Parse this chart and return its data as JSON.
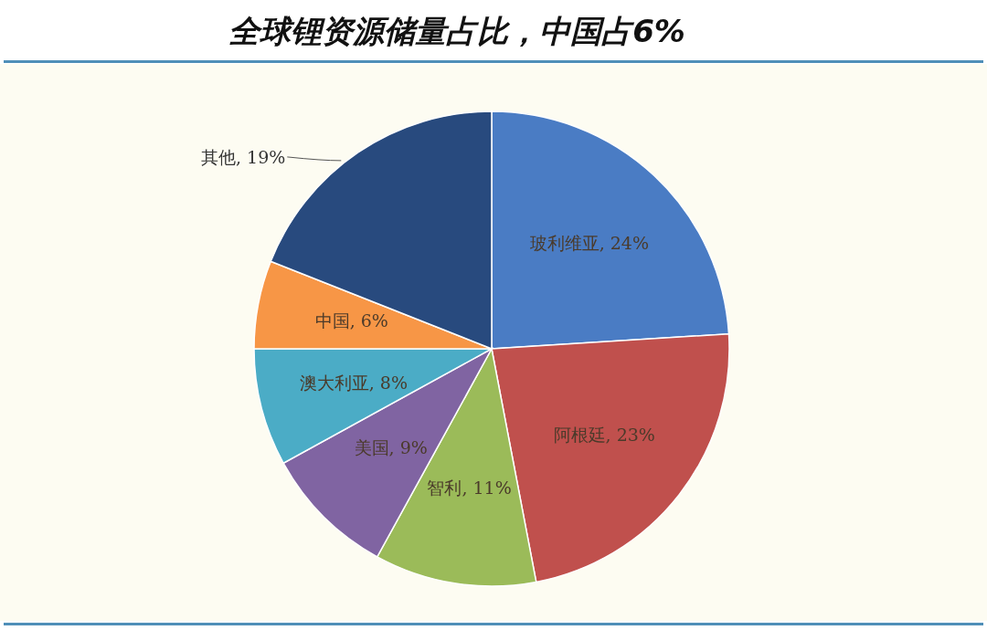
{
  "chart_data": {
    "type": "pie",
    "title": "全球锂资源储量占比，中国占6%",
    "categories": [
      "玻利维亚",
      "阿根廷",
      "智利",
      "美国",
      "澳大利亚",
      "中国",
      "其他"
    ],
    "values": [
      24,
      23,
      11,
      9,
      8,
      6,
      19
    ],
    "value_labels": [
      "24%",
      "23%",
      "11%",
      "9%",
      "8%",
      "6%",
      "19%"
    ],
    "colors": [
      "#4a7cc4",
      "#c0504d",
      "#9bbb59",
      "#8064a2",
      "#4bacc6",
      "#f79646",
      "#284a7e"
    ]
  }
}
